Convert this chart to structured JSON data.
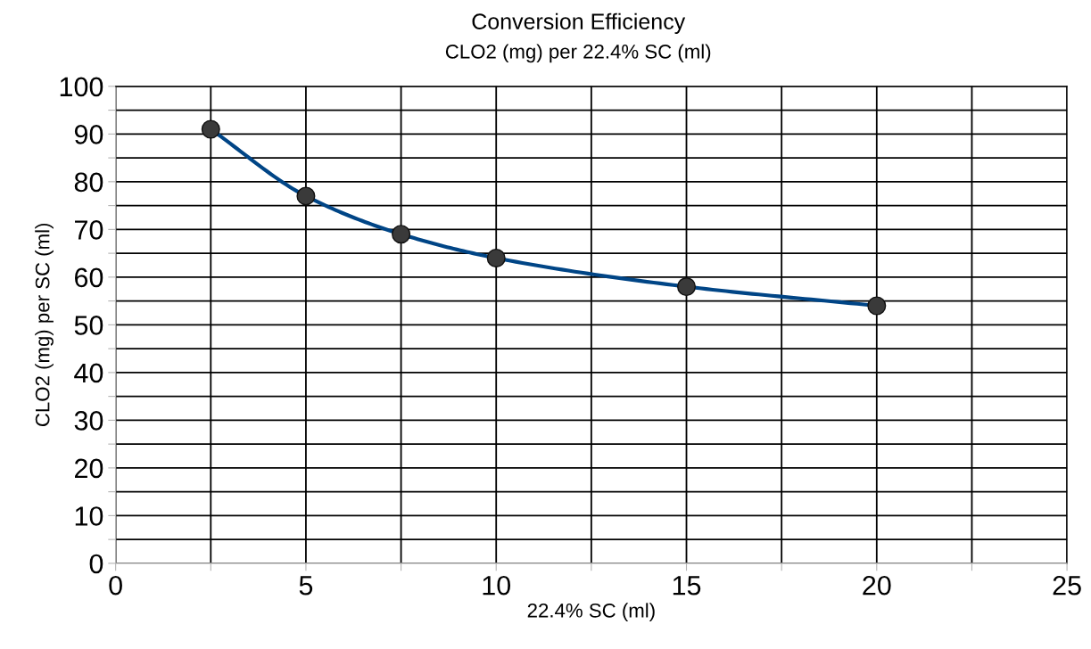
{
  "chart_data": {
    "type": "line",
    "title": "Conversion Efficiency",
    "subtitle": "CLO2 (mg) per 22.4% SC (ml)",
    "xlabel": "22.4% SC (ml)",
    "ylabel": "CLO2 (mg) per SC (ml)",
    "x": [
      2.5,
      5,
      7.5,
      10,
      15,
      20
    ],
    "series": [
      {
        "color": "#004586",
        "values": [
          91,
          77,
          69,
          64,
          58,
          54
        ]
      }
    ],
    "xlim": [
      0,
      25
    ],
    "ylim": [
      0,
      100
    ],
    "xticks": [
      0,
      {
        "value": 2.5,
        "label": null
      },
      5,
      {
        "value": 7.5,
        "label": null
      },
      10,
      {
        "value": 12.5,
        "label": null
      },
      15,
      {
        "value": 17.5,
        "label": null
      },
      20,
      {
        "value": 22.5,
        "label": null
      },
      25
    ],
    "yticks": [
      0,
      {
        "value": 5,
        "label": null
      },
      10,
      {
        "value": 15,
        "label": null
      },
      20,
      {
        "value": 25,
        "label": null
      },
      30,
      {
        "value": 35,
        "label": null
      },
      40,
      {
        "value": 45,
        "label": null
      },
      50,
      {
        "value": 55,
        "label": null
      },
      60,
      {
        "value": 65,
        "label": null
      },
      70,
      {
        "value": 75,
        "label": null
      },
      80,
      {
        "value": 85,
        "label": null
      },
      90,
      {
        "value": 95,
        "label": null
      },
      100
    ],
    "grid": true,
    "marker": "circle",
    "line_style": "solid",
    "legend": false
  }
}
